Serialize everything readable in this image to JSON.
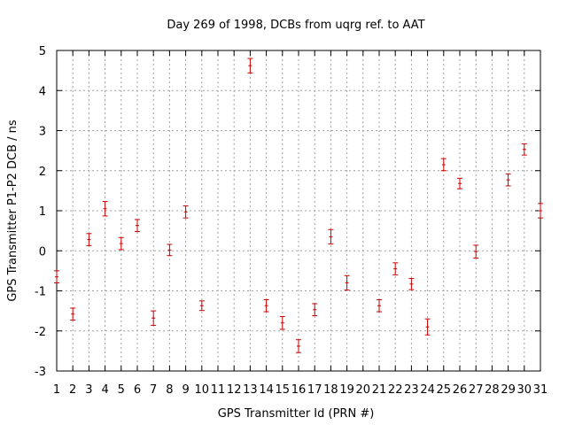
{
  "chart_data": {
    "type": "scatter",
    "title": "Day 269 of 1998, DCBs from uqrg ref. to AAT",
    "xlabel": "GPS Transmitter Id (PRN #)",
    "ylabel": "GPS Transmitter P1-P2 DCB / ns",
    "xlim": [
      1,
      31
    ],
    "ylim": [
      -3,
      5
    ],
    "grid": true,
    "error_bars": true,
    "marker_color": "#cc0000",
    "grid_color": "#a0a0a0",
    "x_ticks": [
      {
        "value": 1,
        "label": "1"
      },
      {
        "value": 2,
        "label": "2"
      },
      {
        "value": 3,
        "label": "3"
      },
      {
        "value": 4,
        "label": "4"
      },
      {
        "value": 5,
        "label": "5"
      },
      {
        "value": 6,
        "label": "6"
      },
      {
        "value": 7,
        "label": "7"
      },
      {
        "value": 8,
        "label": "8"
      },
      {
        "value": 9,
        "label": "9"
      },
      {
        "value": 10,
        "label": "10"
      },
      {
        "value": 11,
        "label": "11"
      },
      {
        "value": 12,
        "label": "12"
      },
      {
        "value": 13,
        "label": "13"
      },
      {
        "value": 14,
        "label": "14"
      },
      {
        "value": 15,
        "label": "15"
      },
      {
        "value": 16,
        "label": "16"
      },
      {
        "value": 17,
        "label": "17"
      },
      {
        "value": 18,
        "label": "18"
      },
      {
        "value": 19,
        "label": "19"
      },
      {
        "value": 20,
        "label": "20"
      },
      {
        "value": 21,
        "label": "21"
      },
      {
        "value": 22,
        "label": "22"
      },
      {
        "value": 23,
        "label": "23"
      },
      {
        "value": 24,
        "label": "24"
      },
      {
        "value": 25,
        "label": "25"
      },
      {
        "value": 26,
        "label": "26"
      },
      {
        "value": 27,
        "label": "27"
      },
      {
        "value": 28,
        "label": "28"
      },
      {
        "value": 29,
        "label": "29"
      },
      {
        "value": 30,
        "label": "30"
      },
      {
        "value": 31,
        "label": "31"
      }
    ],
    "y_ticks": [
      {
        "value": -3,
        "label": "-3"
      },
      {
        "value": -2,
        "label": "-2"
      },
      {
        "value": -1,
        "label": "-1"
      },
      {
        "value": 0,
        "label": "0"
      },
      {
        "value": 1,
        "label": "1"
      },
      {
        "value": 2,
        "label": "2"
      },
      {
        "value": 3,
        "label": "3"
      },
      {
        "value": 4,
        "label": "4"
      },
      {
        "value": 5,
        "label": "5"
      }
    ],
    "points": [
      {
        "x": 1,
        "y": -0.65,
        "err": 0.15
      },
      {
        "x": 2,
        "y": -1.58,
        "err": 0.15
      },
      {
        "x": 3,
        "y": 0.28,
        "err": 0.15
      },
      {
        "x": 4,
        "y": 1.05,
        "err": 0.18
      },
      {
        "x": 5,
        "y": 0.18,
        "err": 0.15
      },
      {
        "x": 6,
        "y": 0.63,
        "err": 0.15
      },
      {
        "x": 7,
        "y": -1.68,
        "err": 0.18
      },
      {
        "x": 8,
        "y": 0.02,
        "err": 0.14
      },
      {
        "x": 9,
        "y": 0.97,
        "err": 0.15
      },
      {
        "x": 10,
        "y": -1.37,
        "err": 0.12
      },
      {
        "x": 13,
        "y": 4.62,
        "err": 0.18
      },
      {
        "x": 14,
        "y": -1.37,
        "err": 0.15
      },
      {
        "x": 15,
        "y": -1.8,
        "err": 0.16
      },
      {
        "x": 16,
        "y": -2.38,
        "err": 0.16
      },
      {
        "x": 17,
        "y": -1.47,
        "err": 0.15
      },
      {
        "x": 18,
        "y": 0.35,
        "err": 0.18
      },
      {
        "x": 19,
        "y": -0.8,
        "err": 0.18
      },
      {
        "x": 21,
        "y": -1.37,
        "err": 0.15
      },
      {
        "x": 22,
        "y": -0.45,
        "err": 0.15
      },
      {
        "x": 23,
        "y": -0.83,
        "err": 0.14
      },
      {
        "x": 24,
        "y": -1.9,
        "err": 0.2
      },
      {
        "x": 25,
        "y": 2.15,
        "err": 0.15
      },
      {
        "x": 26,
        "y": 1.68,
        "err": 0.13
      },
      {
        "x": 27,
        "y": -0.02,
        "err": 0.16
      },
      {
        "x": 29,
        "y": 1.77,
        "err": 0.15
      },
      {
        "x": 30,
        "y": 2.53,
        "err": 0.14
      },
      {
        "x": 31,
        "y": 1.0,
        "err": 0.18
      }
    ]
  }
}
